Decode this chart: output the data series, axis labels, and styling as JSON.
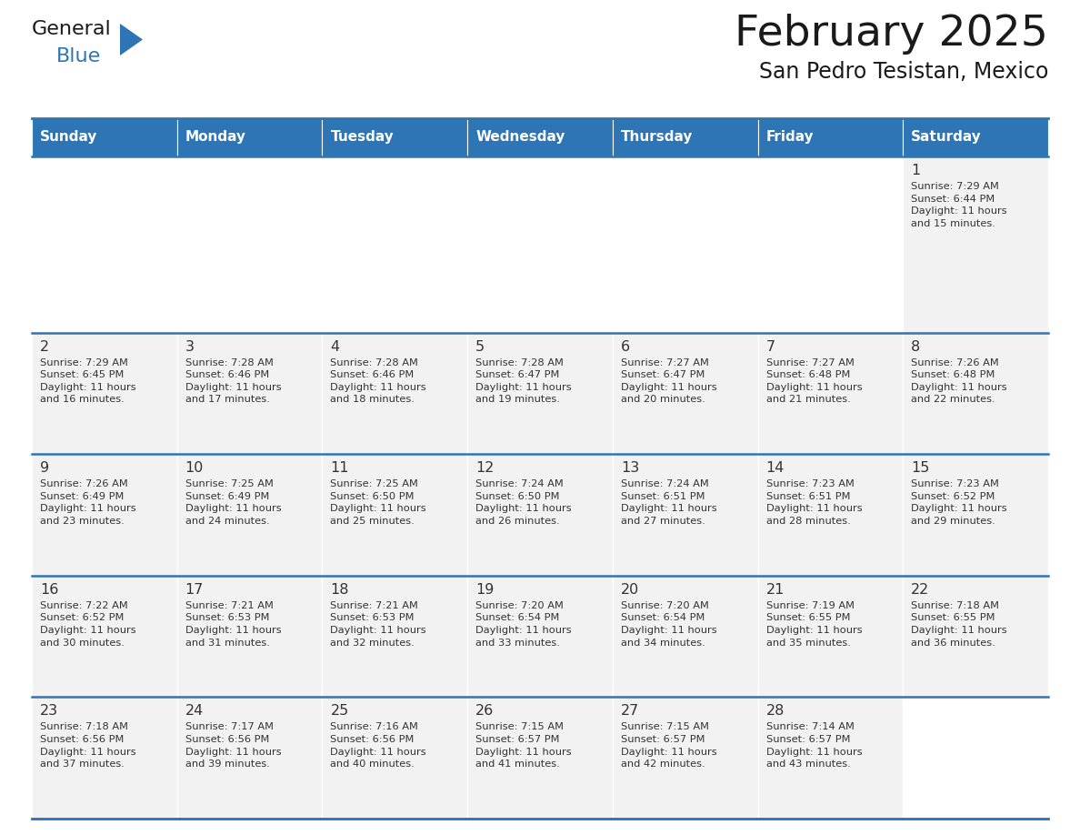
{
  "title": "February 2025",
  "subtitle": "San Pedro Tesistan, Mexico",
  "header_color": "#2E75B6",
  "header_text_color": "#FFFFFF",
  "cell_bg_color": "#F2F2F2",
  "cell_empty_color": "#FFFFFF",
  "cell_text_color": "#333333",
  "day_number_color": "#333333",
  "border_color": "#2E75B6",
  "days_of_week": [
    "Sunday",
    "Monday",
    "Tuesday",
    "Wednesday",
    "Thursday",
    "Friday",
    "Saturday"
  ],
  "weeks": [
    [
      {
        "day": "",
        "sunrise": "",
        "sunset": "",
        "daylight": ""
      },
      {
        "day": "",
        "sunrise": "",
        "sunset": "",
        "daylight": ""
      },
      {
        "day": "",
        "sunrise": "",
        "sunset": "",
        "daylight": ""
      },
      {
        "day": "",
        "sunrise": "",
        "sunset": "",
        "daylight": ""
      },
      {
        "day": "",
        "sunrise": "",
        "sunset": "",
        "daylight": ""
      },
      {
        "day": "",
        "sunrise": "",
        "sunset": "",
        "daylight": ""
      },
      {
        "day": "1",
        "sunrise": "7:29 AM",
        "sunset": "6:44 PM",
        "daylight": "11 hours\nand 15 minutes."
      }
    ],
    [
      {
        "day": "2",
        "sunrise": "7:29 AM",
        "sunset": "6:45 PM",
        "daylight": "11 hours\nand 16 minutes."
      },
      {
        "day": "3",
        "sunrise": "7:28 AM",
        "sunset": "6:46 PM",
        "daylight": "11 hours\nand 17 minutes."
      },
      {
        "day": "4",
        "sunrise": "7:28 AM",
        "sunset": "6:46 PM",
        "daylight": "11 hours\nand 18 minutes."
      },
      {
        "day": "5",
        "sunrise": "7:28 AM",
        "sunset": "6:47 PM",
        "daylight": "11 hours\nand 19 minutes."
      },
      {
        "day": "6",
        "sunrise": "7:27 AM",
        "sunset": "6:47 PM",
        "daylight": "11 hours\nand 20 minutes."
      },
      {
        "day": "7",
        "sunrise": "7:27 AM",
        "sunset": "6:48 PM",
        "daylight": "11 hours\nand 21 minutes."
      },
      {
        "day": "8",
        "sunrise": "7:26 AM",
        "sunset": "6:48 PM",
        "daylight": "11 hours\nand 22 minutes."
      }
    ],
    [
      {
        "day": "9",
        "sunrise": "7:26 AM",
        "sunset": "6:49 PM",
        "daylight": "11 hours\nand 23 minutes."
      },
      {
        "day": "10",
        "sunrise": "7:25 AM",
        "sunset": "6:49 PM",
        "daylight": "11 hours\nand 24 minutes."
      },
      {
        "day": "11",
        "sunrise": "7:25 AM",
        "sunset": "6:50 PM",
        "daylight": "11 hours\nand 25 minutes."
      },
      {
        "day": "12",
        "sunrise": "7:24 AM",
        "sunset": "6:50 PM",
        "daylight": "11 hours\nand 26 minutes."
      },
      {
        "day": "13",
        "sunrise": "7:24 AM",
        "sunset": "6:51 PM",
        "daylight": "11 hours\nand 27 minutes."
      },
      {
        "day": "14",
        "sunrise": "7:23 AM",
        "sunset": "6:51 PM",
        "daylight": "11 hours\nand 28 minutes."
      },
      {
        "day": "15",
        "sunrise": "7:23 AM",
        "sunset": "6:52 PM",
        "daylight": "11 hours\nand 29 minutes."
      }
    ],
    [
      {
        "day": "16",
        "sunrise": "7:22 AM",
        "sunset": "6:52 PM",
        "daylight": "11 hours\nand 30 minutes."
      },
      {
        "day": "17",
        "sunrise": "7:21 AM",
        "sunset": "6:53 PM",
        "daylight": "11 hours\nand 31 minutes."
      },
      {
        "day": "18",
        "sunrise": "7:21 AM",
        "sunset": "6:53 PM",
        "daylight": "11 hours\nand 32 minutes."
      },
      {
        "day": "19",
        "sunrise": "7:20 AM",
        "sunset": "6:54 PM",
        "daylight": "11 hours\nand 33 minutes."
      },
      {
        "day": "20",
        "sunrise": "7:20 AM",
        "sunset": "6:54 PM",
        "daylight": "11 hours\nand 34 minutes."
      },
      {
        "day": "21",
        "sunrise": "7:19 AM",
        "sunset": "6:55 PM",
        "daylight": "11 hours\nand 35 minutes."
      },
      {
        "day": "22",
        "sunrise": "7:18 AM",
        "sunset": "6:55 PM",
        "daylight": "11 hours\nand 36 minutes."
      }
    ],
    [
      {
        "day": "23",
        "sunrise": "7:18 AM",
        "sunset": "6:56 PM",
        "daylight": "11 hours\nand 37 minutes."
      },
      {
        "day": "24",
        "sunrise": "7:17 AM",
        "sunset": "6:56 PM",
        "daylight": "11 hours\nand 39 minutes."
      },
      {
        "day": "25",
        "sunrise": "7:16 AM",
        "sunset": "6:56 PM",
        "daylight": "11 hours\nand 40 minutes."
      },
      {
        "day": "26",
        "sunrise": "7:15 AM",
        "sunset": "6:57 PM",
        "daylight": "11 hours\nand 41 minutes."
      },
      {
        "day": "27",
        "sunrise": "7:15 AM",
        "sunset": "6:57 PM",
        "daylight": "11 hours\nand 42 minutes."
      },
      {
        "day": "28",
        "sunrise": "7:14 AM",
        "sunset": "6:57 PM",
        "daylight": "11 hours\nand 43 minutes."
      },
      {
        "day": "",
        "sunrise": "",
        "sunset": "",
        "daylight": ""
      }
    ]
  ],
  "logo_text_general": "General",
  "logo_text_blue": "Blue",
  "logo_color_general": "#1a1a1a",
  "logo_color_blue": "#2E75B6",
  "logo_triangle_color": "#2E75B6"
}
